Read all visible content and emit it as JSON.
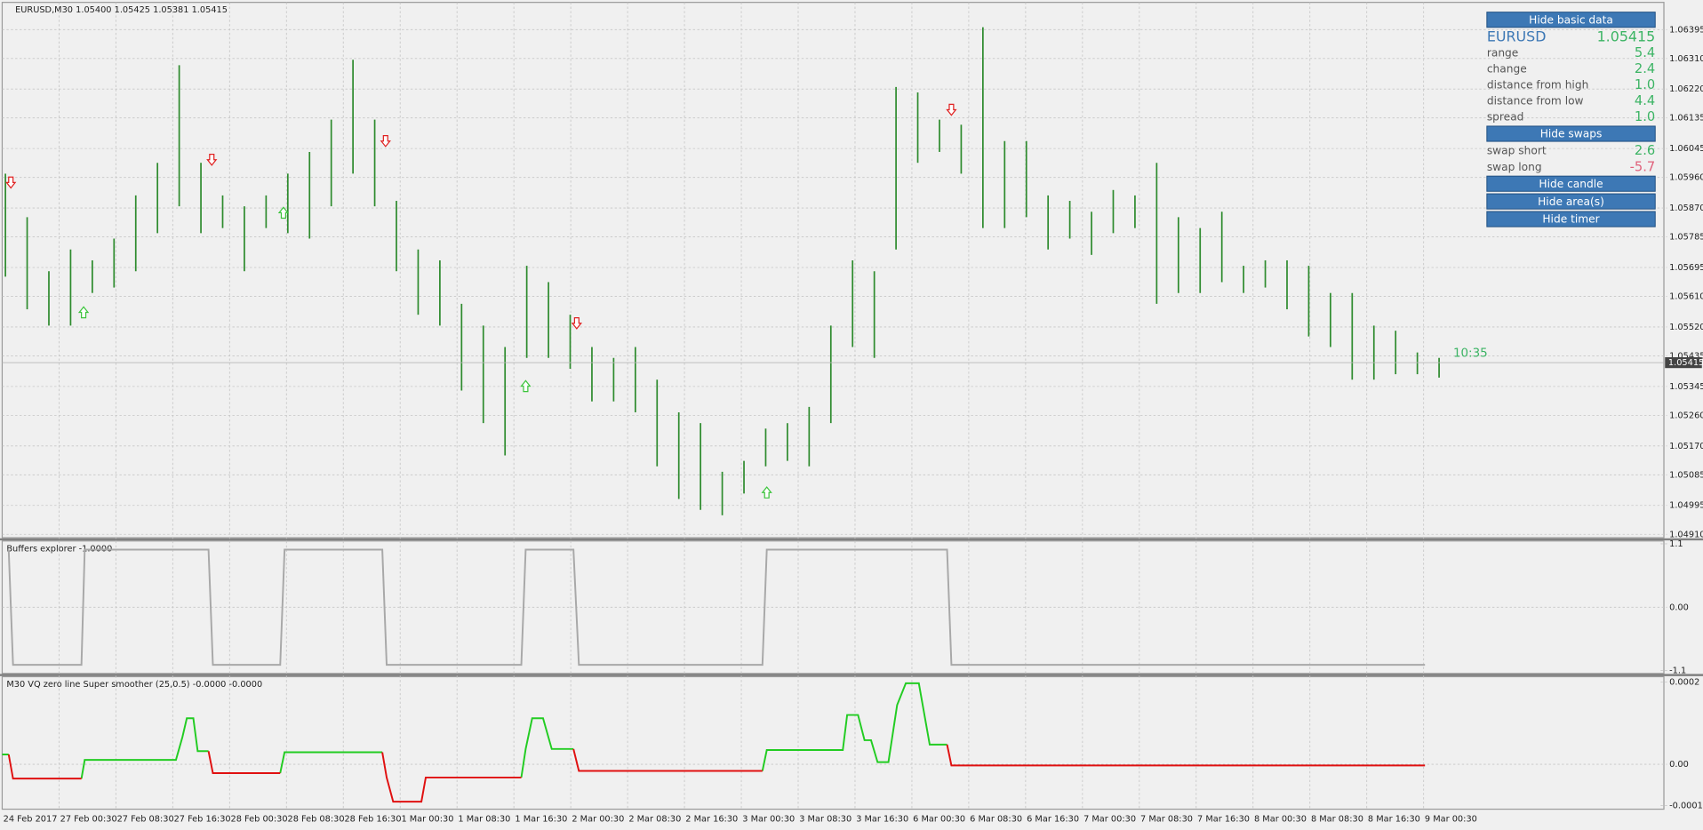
{
  "chart_data": [
    {
      "type": "range_bar",
      "title": "EURUSD,M30  1.05400 1.05425 1.05381 1.05415",
      "color": "#2e8b2e",
      "highs": [
        1.05971,
        1.05843,
        1.05684,
        1.05748,
        1.05716,
        1.0578,
        1.05907,
        1.06003,
        1.0629,
        1.06003,
        1.05907,
        1.05875,
        1.05907,
        1.05971,
        1.06035,
        1.0613,
        1.06306,
        1.0613,
        1.05891,
        1.05748,
        1.05716,
        1.05588,
        1.05524,
        1.05461,
        1.057,
        1.05652,
        1.05556,
        1.05461,
        1.05429,
        1.05461,
        1.05365,
        1.05269,
        1.05237,
        1.05094,
        1.05126,
        1.05221,
        1.05237,
        1.05285,
        1.05524,
        1.05716,
        1.05684,
        1.06226,
        1.0621,
        1.0613,
        1.06115,
        1.06402,
        1.06067,
        1.06067,
        1.05907,
        1.05891,
        1.05859,
        1.05923,
        1.05907,
        1.06003,
        1.05843,
        1.05811,
        1.05859,
        1.057,
        1.05716,
        1.05716,
        1.057,
        1.0562,
        1.0562,
        1.05524,
        1.05509,
        1.05445,
        1.05429
      ],
      "lows": [
        1.05668,
        1.05572,
        1.05524,
        1.05524,
        1.0562,
        1.05636,
        1.05684,
        1.05796,
        1.05875,
        1.05796,
        1.05811,
        1.05684,
        1.05811,
        1.05796,
        1.0578,
        1.05875,
        1.05971,
        1.05875,
        1.05684,
        1.05556,
        1.05524,
        1.05333,
        1.05237,
        1.05142,
        1.05429,
        1.05429,
        1.05397,
        1.05301,
        1.05301,
        1.05269,
        1.0511,
        1.05014,
        1.04982,
        1.04966,
        1.0503,
        1.0511,
        1.05126,
        1.0511,
        1.05237,
        1.05461,
        1.05429,
        1.05748,
        1.06003,
        1.06035,
        1.05971,
        1.05811,
        1.05811,
        1.05843,
        1.05748,
        1.0578,
        1.05732,
        1.05796,
        1.05811,
        1.05588,
        1.0562,
        1.0562,
        1.05652,
        1.0562,
        1.05636,
        1.05572,
        1.05492,
        1.05461,
        1.05365,
        1.05365,
        1.05381,
        1.05381,
        1.05371
      ],
      "ylim": [
        1.049,
        1.06475
      ],
      "yticks": [
        1.06395,
        {
          "value": 1.0631,
          "label": "1.06310"
        },
        {
          "value": 1.0622,
          "label": "1.06220"
        },
        1.06135,
        1.06045,
        {
          "value": 1.0596,
          "label": "1.05960"
        },
        {
          "value": 1.0587,
          "label": "1.05870"
        },
        1.05785,
        1.05695,
        {
          "value": 1.0561,
          "label": "1.05610"
        },
        {
          "value": 1.0552,
          "label": "1.05520"
        },
        1.05435,
        1.05345,
        {
          "value": 1.0526,
          "label": "1.05260"
        },
        {
          "value": 1.0517,
          "label": "1.05170"
        },
        1.05085,
        1.04995,
        {
          "value": 1.0491,
          "label": "1.04910"
        }
      ],
      "grid": true,
      "current_price": 1.05415,
      "timer": "10:35",
      "sell_arrows": {
        "color": "#e02020",
        "x": [
          0.25,
          9.5,
          17.5,
          26.3,
          43.55
        ],
        "values": [
          1.05945,
          1.06012,
          1.06067,
          1.05531,
          1.06159
        ]
      },
      "buy_arrows": {
        "color": "#3cc43c",
        "x": [
          3.6,
          12.8,
          23.95,
          35.05
        ],
        "values": [
          1.05563,
          1.05856,
          1.05346,
          1.05033
        ]
      },
      "xtick_labels": [
        "24 Feb 2017",
        "27 Feb 00:30",
        "27 Feb 08:30",
        "27 Feb 16:30",
        "28 Feb 00:30",
        "28 Feb 08:30",
        "28 Feb 16:30",
        "1 Mar 00:30",
        "1 Mar 08:30",
        "1 Mar 16:30",
        "2 Mar 00:30",
        "2 Mar 08:30",
        "2 Mar 16:30",
        "3 Mar 00:30",
        "3 Mar 08:30",
        "3 Mar 16:30",
        "6 Mar 00:30",
        "6 Mar 08:30",
        "6 Mar 16:30",
        "7 Mar 00:30",
        "7 Mar 08:30",
        "7 Mar 16:30",
        "8 Mar 00:30",
        "8 Mar 08:30",
        "8 Mar 16:30",
        "9 Mar 00:30"
      ]
    },
    {
      "type": "line",
      "title": "Buffers explorer -1.0000",
      "ylim": [
        -1.15,
        1.15
      ],
      "yticks": [
        1.1,
        {
          "value": 0,
          "label": "0.00"
        },
        -1.1
      ],
      "series": [
        {
          "color": "#a8a8a8",
          "x": [
            0.15,
            0.35,
            3.5,
            3.65,
            9.35,
            9.55,
            12.65,
            12.85,
            17.35,
            17.55,
            23.75,
            23.95,
            26.15,
            26.4,
            34.85,
            35.05,
            43.35,
            43.55,
            65.35
          ],
          "values": [
            1,
            -1,
            -1,
            1,
            1,
            -1,
            -1,
            1,
            1,
            -1,
            -1,
            1,
            1,
            -1,
            -1,
            1,
            1,
            -1,
            -1
          ]
        }
      ]
    },
    {
      "type": "line",
      "title": "M30 VQ zero line Super smoother (25,0.5) -0.0000 -0.0000",
      "ylim": [
        -0.000109,
        0.000213
      ],
      "yticks": [
        0.0002,
        {
          "value": 0,
          "label": "0.00"
        },
        -0.0001
      ],
      "series": [
        {
          "color": "#22cc22",
          "x": [
            -0.15,
            0.15,
            null,
            3.5,
            3.65,
            7.85,
            8.15,
            8.35,
            8.65,
            8.85,
            9.35,
            null,
            12.65,
            12.85,
            17.35,
            null,
            23.75,
            23.95,
            24.25,
            24.75,
            25.15,
            26.15,
            null,
            34.85,
            35.05,
            38.55,
            38.75,
            39.25,
            39.55,
            39.85,
            40.15,
            40.65,
            41.05,
            41.45,
            42.05,
            42.55,
            43.35
          ],
          "values": [
            2.4e-05,
            2.4e-05,
            null,
            -3.47e-05,
            1.07e-05,
            1.07e-05,
            6.67e-05,
            0.000112,
            0.000112,
            3.2e-05,
            3.2e-05,
            null,
            -2.13e-05,
            2.93e-05,
            2.93e-05,
            null,
            -3.2e-05,
            3.73e-05,
            0.000112,
            0.000112,
            3.73e-05,
            3.73e-05,
            null,
            -1.6e-05,
            3.47e-05,
            3.47e-05,
            0.00012,
            0.00012,
            5.87e-05,
            5.87e-05,
            5.3e-06,
            5.3e-06,
            0.000144,
            0.000197,
            0.000197,
            4.8e-05,
            4.8e-05
          ]
        },
        {
          "color": "#e01010",
          "x": [
            0.15,
            0.35,
            3.5,
            null,
            9.35,
            9.55,
            12.65,
            null,
            17.35,
            17.55,
            17.85,
            19.15,
            19.35,
            23.75,
            null,
            26.15,
            26.4,
            34.85,
            null,
            43.35,
            43.55,
            65.35
          ],
          "values": [
            2.4e-05,
            -3.47e-05,
            -3.47e-05,
            null,
            3.2e-05,
            -2.13e-05,
            -2.13e-05,
            null,
            2.93e-05,
            -3.2e-05,
            -9.07e-05,
            -9.07e-05,
            -3.2e-05,
            -3.2e-05,
            null,
            3.73e-05,
            -1.6e-05,
            -1.6e-05,
            null,
            4.8e-05,
            -2.7e-06,
            -2.7e-06
          ]
        }
      ]
    }
  ],
  "info_panel": {
    "hide_basic": "Hide basic data",
    "symbol": "EURUSD",
    "price": "1.05415",
    "rows": [
      [
        "range",
        "5.4"
      ],
      [
        "change",
        "2.4"
      ],
      [
        "distance from high",
        "1.0"
      ],
      [
        "distance from low",
        "4.4"
      ],
      [
        "spread",
        "1.0"
      ]
    ],
    "hide_swaps": "Hide swaps",
    "swap_rows": [
      [
        "swap short",
        "2.6"
      ],
      [
        "swap long",
        "-5.7"
      ]
    ],
    "buttons": [
      "Hide candle",
      "Hide area(s)",
      "Hide timer"
    ]
  }
}
